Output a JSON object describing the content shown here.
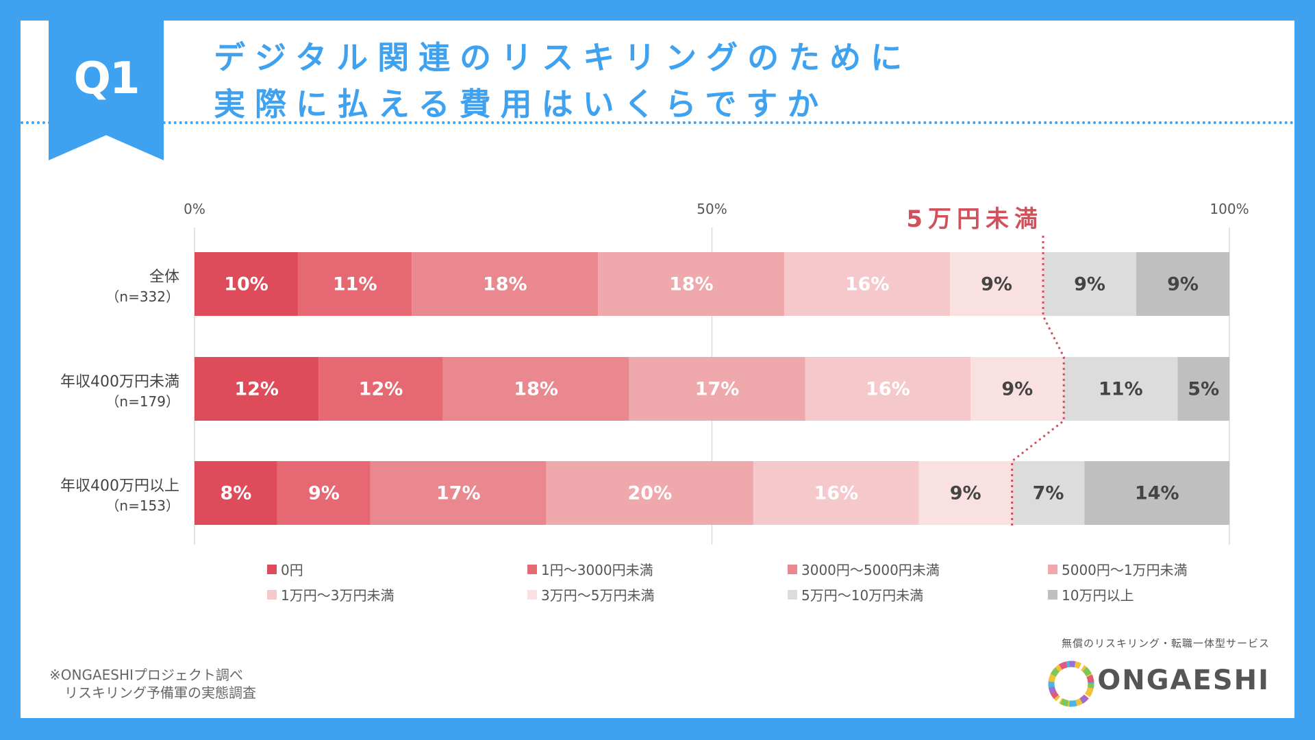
{
  "header": {
    "badge": "Q1",
    "title_line1": "デジタル関連のリスキリングのために",
    "title_line2": "実際に払える費用はいくらですか"
  },
  "chart_data": {
    "type": "bar",
    "orientation": "horizontal",
    "stacked": true,
    "percent_scale": true,
    "xlim": [
      0,
      100
    ],
    "x_ticks": [
      "0%",
      "50%",
      "100%"
    ],
    "categories": [
      {
        "label": "全体",
        "n": "（n=332）",
        "values": [
          "10%",
          "11%",
          "18%",
          "18%",
          "16%",
          "9%",
          "9%",
          "9%"
        ]
      },
      {
        "label": "年収400万円未満",
        "n": "（n=179）",
        "values": [
          "12%",
          "12%",
          "18%",
          "17%",
          "16%",
          "9%",
          "11%",
          "5%"
        ]
      },
      {
        "label": "年収400万円以上",
        "n": "（n=153）",
        "values": [
          "8%",
          "9%",
          "17%",
          "20%",
          "16%",
          "9%",
          "7%",
          "14%"
        ]
      }
    ],
    "series": [
      {
        "name": "0円",
        "color": "#de4b5b"
      },
      {
        "name": "1円～3000円未満",
        "color": "#e56873"
      },
      {
        "name": "3000円～5000円未満",
        "color": "#e9898f"
      },
      {
        "name": "5000円～1万円未満",
        "color": "#efa9ad"
      },
      {
        "name": "1万円～3万円未満",
        "color": "#f5c9cb"
      },
      {
        "name": "3万円～5万円未満",
        "color": "#f9e1e2"
      },
      {
        "name": "5万円～10万円未満",
        "color": "#dcdcdc"
      },
      {
        "name": "10万円以上",
        "color": "#bfbfbf"
      }
    ],
    "annotation": "5万円未満",
    "annotation_color": "#d0505c",
    "threshold_after_series": 5
  },
  "footnote": {
    "line1": "※ONGAESHIプロジェクト調べ",
    "line2": "リスキリング予備軍の実態調査"
  },
  "brand": {
    "tagline": "無償のリスキリング・転職一体型サービス",
    "name": "ONGAESHI"
  }
}
